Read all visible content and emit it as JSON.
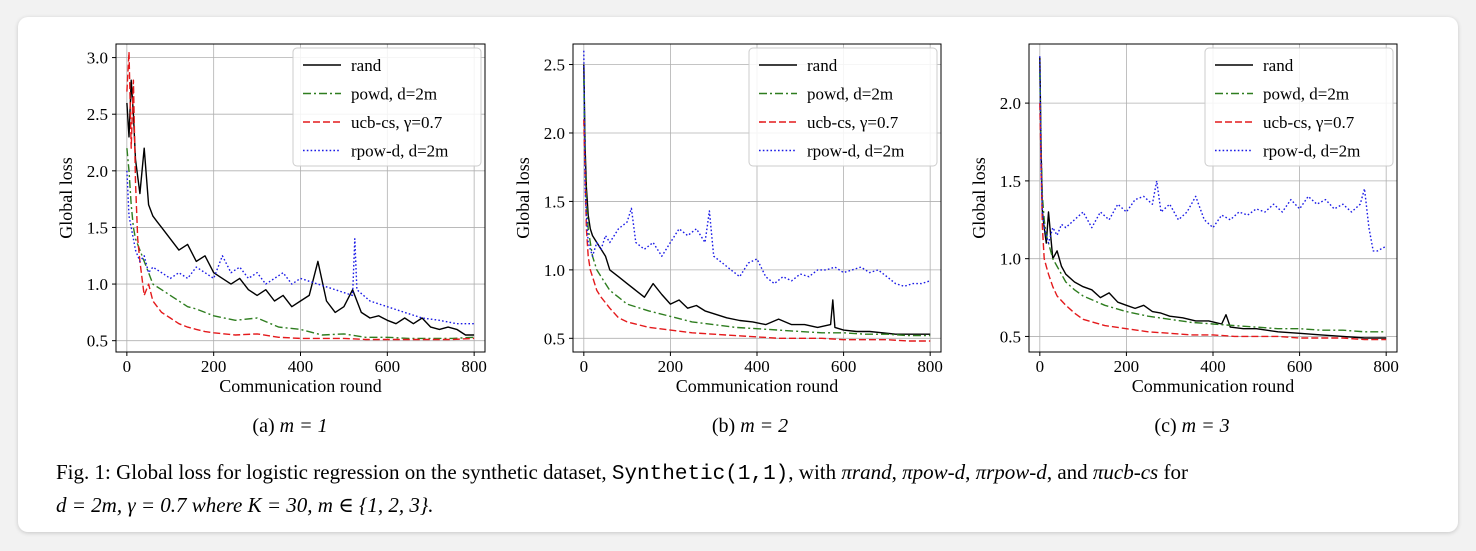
{
  "chart_data": [
    {
      "type": "line",
      "subcaption_prefix": "(a)",
      "subcaption_math": "m = 1",
      "xlabel": "Communication round",
      "ylabel": "Global loss",
      "xlim": [
        -25,
        825
      ],
      "ylim": [
        0.4,
        3.12
      ],
      "xticks": [
        0,
        200,
        400,
        600,
        800
      ],
      "yticks": [
        0.5,
        1.0,
        1.5,
        2.0,
        2.5,
        3.0
      ],
      "ytick_labels": [
        "0.5",
        "1.0",
        "1.5",
        "2.0",
        "2.5",
        "3.0"
      ],
      "grid": true,
      "legend_position": "top-right",
      "series": [
        {
          "name": "rand",
          "color": "#000000",
          "dash": "solid",
          "x": [
            0,
            5,
            10,
            15,
            20,
            30,
            40,
            50,
            60,
            70,
            80,
            90,
            100,
            120,
            140,
            160,
            180,
            200,
            220,
            240,
            260,
            280,
            300,
            320,
            340,
            360,
            380,
            400,
            420,
            440,
            460,
            480,
            500,
            520,
            540,
            560,
            580,
            600,
            620,
            640,
            660,
            680,
            700,
            720,
            740,
            760,
            780,
            800
          ],
          "y": [
            2.6,
            2.3,
            2.8,
            2.5,
            2.1,
            1.8,
            2.2,
            1.7,
            1.6,
            1.55,
            1.5,
            1.45,
            1.4,
            1.3,
            1.35,
            1.2,
            1.25,
            1.1,
            1.05,
            1.0,
            1.05,
            0.95,
            0.9,
            0.95,
            0.85,
            0.9,
            0.8,
            0.85,
            0.9,
            1.2,
            0.85,
            0.75,
            0.8,
            0.95,
            0.75,
            0.7,
            0.72,
            0.68,
            0.65,
            0.7,
            0.65,
            0.7,
            0.62,
            0.6,
            0.62,
            0.6,
            0.55,
            0.55
          ]
        },
        {
          "name": "powd, d=2m",
          "color": "#2e7d1f",
          "dash": "dashdot",
          "x": [
            0,
            5,
            10,
            15,
            20,
            30,
            40,
            50,
            60,
            80,
            100,
            120,
            140,
            160,
            180,
            200,
            250,
            300,
            350,
            400,
            450,
            500,
            550,
            600,
            650,
            700,
            750,
            800
          ],
          "y": [
            2.2,
            2.0,
            1.7,
            1.5,
            1.4,
            1.3,
            1.2,
            1.1,
            1.0,
            0.95,
            0.9,
            0.85,
            0.8,
            0.78,
            0.75,
            0.72,
            0.68,
            0.7,
            0.62,
            0.6,
            0.55,
            0.56,
            0.53,
            0.53,
            0.52,
            0.52,
            0.52,
            0.53
          ]
        },
        {
          "name": "ucb-cs, γ=0.7",
          "color": "#e41a1c",
          "dash": "dashed",
          "x": [
            0,
            5,
            10,
            15,
            20,
            25,
            30,
            40,
            50,
            60,
            70,
            80,
            100,
            120,
            140,
            160,
            180,
            200,
            250,
            300,
            350,
            400,
            450,
            500,
            550,
            600,
            650,
            700,
            750,
            800
          ],
          "y": [
            2.7,
            3.05,
            2.2,
            2.8,
            1.9,
            1.4,
            1.2,
            0.9,
            1.0,
            0.85,
            0.8,
            0.75,
            0.7,
            0.65,
            0.62,
            0.6,
            0.58,
            0.57,
            0.55,
            0.56,
            0.53,
            0.52,
            0.52,
            0.52,
            0.51,
            0.51,
            0.51,
            0.51,
            0.51,
            0.52
          ]
        },
        {
          "name": "rpow-d, d=2m",
          "color": "#1a1ae6",
          "dash": "dotted",
          "x": [
            0,
            5,
            10,
            15,
            20,
            30,
            40,
            50,
            60,
            80,
            100,
            120,
            140,
            160,
            180,
            200,
            220,
            240,
            260,
            280,
            300,
            320,
            340,
            360,
            380,
            400,
            440,
            480,
            520,
            525,
            530,
            560,
            600,
            640,
            680,
            720,
            760,
            800
          ],
          "y": [
            2.0,
            1.6,
            1.5,
            1.4,
            1.3,
            1.2,
            1.25,
            1.1,
            1.15,
            1.1,
            1.05,
            1.1,
            1.05,
            1.15,
            1.1,
            1.05,
            1.25,
            1.1,
            1.15,
            1.05,
            1.1,
            1.0,
            1.05,
            1.1,
            1.0,
            1.05,
            1.0,
            0.95,
            0.9,
            1.4,
            0.95,
            0.85,
            0.8,
            0.75,
            0.7,
            0.68,
            0.65,
            0.65
          ]
        }
      ]
    },
    {
      "type": "line",
      "subcaption_prefix": "(b)",
      "subcaption_math": "m = 2",
      "xlabel": "Communication round",
      "ylabel": "Global loss",
      "xlim": [
        -25,
        825
      ],
      "ylim": [
        0.4,
        2.65
      ],
      "xticks": [
        0,
        200,
        400,
        600,
        800
      ],
      "yticks": [
        0.5,
        1.0,
        1.5,
        2.0,
        2.5
      ],
      "ytick_labels": [
        "0.5",
        "1.0",
        "1.5",
        "2.0",
        "2.5"
      ],
      "grid": true,
      "legend_position": "top-right",
      "series": [
        {
          "name": "rand",
          "color": "#000000",
          "dash": "solid",
          "x": [
            0,
            3,
            6,
            10,
            15,
            20,
            30,
            40,
            50,
            60,
            80,
            100,
            120,
            140,
            160,
            180,
            200,
            220,
            240,
            260,
            280,
            300,
            330,
            360,
            390,
            420,
            450,
            480,
            510,
            540,
            570,
            575,
            580,
            600,
            630,
            660,
            690,
            720,
            760,
            800
          ],
          "y": [
            2.5,
            1.9,
            1.6,
            1.4,
            1.3,
            1.25,
            1.2,
            1.15,
            1.1,
            1.0,
            0.95,
            0.9,
            0.85,
            0.8,
            0.9,
            0.82,
            0.75,
            0.78,
            0.72,
            0.74,
            0.7,
            0.68,
            0.65,
            0.63,
            0.62,
            0.6,
            0.64,
            0.6,
            0.6,
            0.58,
            0.6,
            0.78,
            0.58,
            0.56,
            0.55,
            0.55,
            0.54,
            0.53,
            0.53,
            0.53
          ]
        },
        {
          "name": "powd, d=2m",
          "color": "#2e7d1f",
          "dash": "dashdot",
          "x": [
            0,
            3,
            6,
            10,
            15,
            20,
            30,
            40,
            60,
            80,
            100,
            150,
            200,
            250,
            300,
            350,
            400,
            450,
            500,
            550,
            600,
            650,
            700,
            750,
            800
          ],
          "y": [
            2.4,
            1.8,
            1.5,
            1.3,
            1.2,
            1.1,
            1.0,
            0.95,
            0.85,
            0.8,
            0.75,
            0.7,
            0.66,
            0.62,
            0.6,
            0.58,
            0.57,
            0.56,
            0.55,
            0.54,
            0.54,
            0.53,
            0.53,
            0.52,
            0.52
          ]
        },
        {
          "name": "ucb-cs, γ=0.7",
          "color": "#e41a1c",
          "dash": "dashed",
          "x": [
            0,
            3,
            6,
            10,
            15,
            20,
            30,
            40,
            60,
            80,
            100,
            150,
            200,
            250,
            300,
            350,
            400,
            450,
            500,
            550,
            600,
            650,
            700,
            750,
            800
          ],
          "y": [
            2.1,
            1.7,
            1.3,
            1.1,
            1.0,
            0.95,
            0.85,
            0.8,
            0.72,
            0.65,
            0.62,
            0.58,
            0.56,
            0.54,
            0.53,
            0.52,
            0.51,
            0.5,
            0.5,
            0.5,
            0.49,
            0.49,
            0.49,
            0.48,
            0.48
          ]
        },
        {
          "name": "rpow-d, d=2m",
          "color": "#1a1ae6",
          "dash": "dotted",
          "x": [
            0,
            3,
            6,
            10,
            15,
            20,
            30,
            40,
            50,
            60,
            80,
            100,
            110,
            120,
            140,
            160,
            180,
            200,
            220,
            240,
            260,
            280,
            290,
            300,
            320,
            340,
            360,
            380,
            400,
            420,
            440,
            460,
            480,
            500,
            520,
            540,
            560,
            580,
            600,
            620,
            640,
            660,
            680,
            700,
            720,
            740,
            760,
            780,
            800
          ],
          "y": [
            2.6,
            1.6,
            1.4,
            1.2,
            1.15,
            1.1,
            1.2,
            1.15,
            1.25,
            1.2,
            1.3,
            1.35,
            1.45,
            1.2,
            1.15,
            1.2,
            1.1,
            1.2,
            1.3,
            1.25,
            1.3,
            1.2,
            1.43,
            1.1,
            1.05,
            1.0,
            0.95,
            1.05,
            1.08,
            0.95,
            0.9,
            0.95,
            0.92,
            0.97,
            0.95,
            1.0,
            1.0,
            1.02,
            0.98,
            1.0,
            1.02,
            0.98,
            1.0,
            0.95,
            0.9,
            0.88,
            0.9,
            0.9,
            0.92
          ]
        }
      ]
    },
    {
      "type": "line",
      "subcaption_prefix": "(c)",
      "subcaption_math": "m = 3",
      "xlabel": "Communication round",
      "ylabel": "Global loss",
      "xlim": [
        -25,
        825
      ],
      "ylim": [
        0.4,
        2.38
      ],
      "xticks": [
        0,
        200,
        400,
        600,
        800
      ],
      "yticks": [
        0.5,
        1.0,
        1.5,
        2.0
      ],
      "ytick_labels": [
        "0.5",
        "1.0",
        "1.5",
        "2.0"
      ],
      "grid": true,
      "legend_position": "top-right",
      "series": [
        {
          "name": "rand",
          "color": "#000000",
          "dash": "solid",
          "x": [
            0,
            3,
            6,
            10,
            15,
            20,
            30,
            40,
            50,
            60,
            80,
            100,
            120,
            140,
            160,
            180,
            200,
            220,
            240,
            260,
            280,
            300,
            330,
            360,
            390,
            420,
            430,
            440,
            470,
            500,
            550,
            600,
            650,
            700,
            750,
            800
          ],
          "y": [
            2.3,
            1.7,
            1.3,
            1.2,
            1.1,
            1.3,
            1.0,
            1.05,
            0.95,
            0.9,
            0.85,
            0.82,
            0.8,
            0.75,
            0.78,
            0.72,
            0.7,
            0.68,
            0.7,
            0.66,
            0.65,
            0.63,
            0.62,
            0.6,
            0.6,
            0.58,
            0.64,
            0.56,
            0.55,
            0.55,
            0.53,
            0.52,
            0.51,
            0.5,
            0.49,
            0.49
          ]
        },
        {
          "name": "powd, d=2m",
          "color": "#2e7d1f",
          "dash": "dashdot",
          "x": [
            0,
            3,
            6,
            10,
            15,
            20,
            30,
            40,
            60,
            80,
            100,
            150,
            200,
            250,
            300,
            350,
            400,
            450,
            500,
            550,
            600,
            650,
            700,
            750,
            800
          ],
          "y": [
            2.2,
            1.7,
            1.4,
            1.25,
            1.15,
            1.1,
            1.0,
            0.95,
            0.85,
            0.8,
            0.76,
            0.7,
            0.66,
            0.63,
            0.61,
            0.59,
            0.58,
            0.57,
            0.56,
            0.55,
            0.55,
            0.54,
            0.54,
            0.53,
            0.53
          ]
        },
        {
          "name": "ucb-cs, γ=0.7",
          "color": "#e41a1c",
          "dash": "dashed",
          "x": [
            0,
            3,
            6,
            10,
            15,
            20,
            30,
            40,
            60,
            80,
            100,
            150,
            200,
            250,
            300,
            350,
            400,
            450,
            500,
            550,
            600,
            650,
            700,
            750,
            800
          ],
          "y": [
            2.0,
            1.6,
            1.2,
            1.0,
            0.95,
            0.9,
            0.82,
            0.76,
            0.7,
            0.65,
            0.61,
            0.57,
            0.55,
            0.53,
            0.52,
            0.51,
            0.51,
            0.5,
            0.5,
            0.5,
            0.49,
            0.49,
            0.49,
            0.48,
            0.48
          ]
        },
        {
          "name": "rpow-d, d=2m",
          "color": "#1a1ae6",
          "dash": "dotted",
          "x": [
            0,
            3,
            6,
            10,
            15,
            20,
            30,
            40,
            50,
            60,
            80,
            100,
            120,
            140,
            160,
            180,
            200,
            220,
            240,
            260,
            270,
            280,
            300,
            320,
            340,
            360,
            380,
            400,
            420,
            440,
            460,
            480,
            500,
            520,
            540,
            560,
            580,
            600,
            620,
            640,
            660,
            680,
            700,
            720,
            740,
            750,
            760,
            770,
            780,
            800
          ],
          "y": [
            2.3,
            1.6,
            1.3,
            1.2,
            1.15,
            1.1,
            1.2,
            1.15,
            1.22,
            1.2,
            1.25,
            1.3,
            1.2,
            1.3,
            1.25,
            1.35,
            1.3,
            1.38,
            1.4,
            1.35,
            1.5,
            1.3,
            1.35,
            1.25,
            1.3,
            1.4,
            1.25,
            1.2,
            1.28,
            1.25,
            1.3,
            1.28,
            1.32,
            1.3,
            1.35,
            1.3,
            1.38,
            1.32,
            1.4,
            1.35,
            1.38,
            1.32,
            1.35,
            1.3,
            1.35,
            1.45,
            1.2,
            1.05,
            1.05,
            1.08
          ]
        }
      ]
    }
  ],
  "caption": {
    "prefix": "Fig. 1: Global loss for logistic regression on the synthetic dataset,",
    "dataset": "Synthetic(1,1)",
    "with": ", with",
    "pi_rand": "πrand",
    "pi_powd": "πpow-d",
    "pi_rpowd": "πrpow-d",
    "and_text": ", and",
    "pi_ucbcs": "πucb-cs",
    "for_text": "for",
    "line2": "d = 2m,  γ = 0.7 where K = 30,  m ∈ {1, 2, 3}."
  }
}
